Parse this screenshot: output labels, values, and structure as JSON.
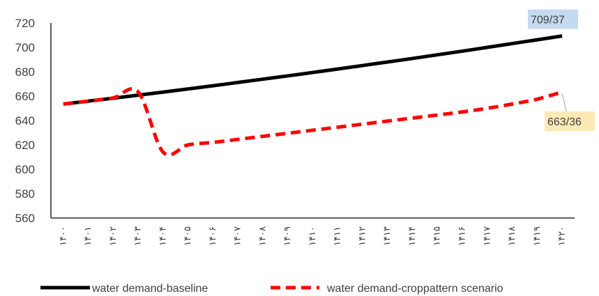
{
  "chart_data": {
    "type": "line",
    "title": "",
    "xlabel": "",
    "ylabel": "",
    "ylim": [
      560,
      720
    ],
    "y_ticks": [
      560,
      580,
      600,
      620,
      640,
      660,
      680,
      700,
      720
    ],
    "categories": [
      "۱۴۰۰",
      "۱۴۰۱",
      "۱۴۰۲",
      "۱۴۰۳",
      "۱۴۰۴",
      "۱۴۰۵",
      "۱۴۰۶",
      "۱۴۰۷",
      "۱۴۰۸",
      "۱۴۰۹",
      "۱۴۱۰",
      "۱۴۱۱",
      "۱۴۱۲",
      "۱۴۱۳",
      "۱۴۱۴",
      "۱۴۱۵",
      "۱۴۱۶",
      "۱۴۱۷",
      "۱۴۱۸",
      "۱۴۱۹",
      "۱۴۲۰"
    ],
    "grid": false,
    "legend_position": "bottom",
    "series": [
      {
        "name": "water demand-baseline",
        "color": "#000000",
        "style": "solid",
        "values": [
          653.5,
          655.9,
          658.3,
          660.8,
          663.3,
          665.9,
          668.5,
          671.2,
          673.9,
          676.6,
          679.4,
          682.2,
          685.1,
          688.0,
          690.9,
          693.9,
          696.9,
          700.0,
          703.1,
          706.2,
          709.37
        ]
      },
      {
        "name": "water demand-croppattern scenario",
        "color": "#ff0000",
        "style": "dashed",
        "values": [
          653.5,
          655.9,
          658.5,
          663.5,
          614.0,
          620.0,
          622.0,
          624.5,
          627.0,
          629.5,
          632.0,
          634.5,
          637.0,
          639.5,
          642.0,
          644.5,
          647.0,
          650.0,
          653.5,
          657.5,
          663.36
        ]
      }
    ],
    "annotations": [
      {
        "text": "709/37",
        "series": 0,
        "index": 20,
        "bg": "#c5d9f1"
      },
      {
        "text": "663/36",
        "series": 1,
        "index": 20,
        "bg": "#fce9b6"
      }
    ]
  }
}
